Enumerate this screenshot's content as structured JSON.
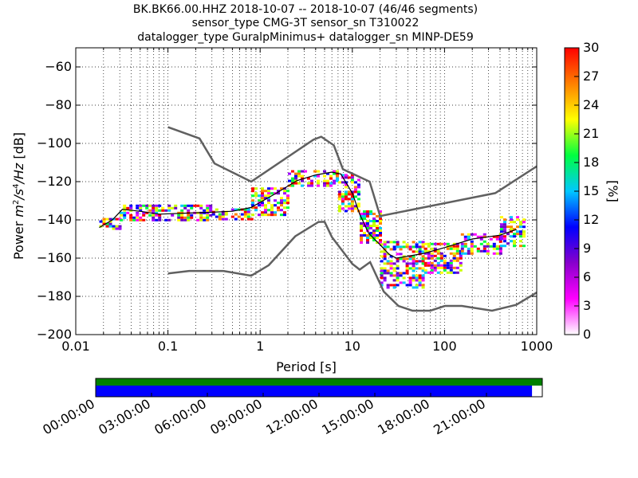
{
  "title_lines": [
    "BK.BK66.00.HHZ   2018-10-07 -- 2018-10-07  (46/46 segments)",
    "sensor_type CMG-3T sensor_sn T310022",
    "datalogger_type GuralpMinimus+ datalogger_sn MINP-DE59"
  ],
  "chart_data": [
    {
      "type": "heatmap",
      "title": "BK.BK66.00.HHZ   2018-10-07 -- 2018-10-07  (46/46 segments)",
      "xlabel": "Period [s]",
      "ylabel": "Power [m²/s⁴/Hz] [dB]",
      "ylabel_parts": [
        "Power ",
        "m",
        "2",
        "/s",
        "4",
        "/Hz",
        " [dB]"
      ],
      "xscale": "log",
      "xlim": [
        0.01,
        1000
      ],
      "ylim": [
        -200,
        -50
      ],
      "x_ticks": [
        0.01,
        0.1,
        1,
        10,
        100,
        1000
      ],
      "x_tick_labels": [
        "0.01",
        "0.1",
        "1",
        "10",
        "100",
        "1000"
      ],
      "y_ticks": [
        -200,
        -180,
        -160,
        -140,
        -120,
        -100,
        -80,
        -60
      ],
      "y_tick_labels": [
        "−200",
        "−180",
        "−160",
        "−140",
        "−120",
        "−100",
        "−80",
        "−60"
      ],
      "grid": true,
      "colorbar": {
        "label": "[%]",
        "range": [
          0,
          30
        ],
        "ticks": [
          0,
          3,
          6,
          9,
          12,
          15,
          18,
          21,
          24,
          27,
          30
        ],
        "tick_labels": [
          "0",
          "3",
          "6",
          "9",
          "12",
          "15",
          "18",
          "21",
          "24",
          "27",
          "30"
        ],
        "colormap": [
          "#ffffff",
          "#ff00ff",
          "#8800cc",
          "#0000ff",
          "#00c8ff",
          "#00ff40",
          "#ffff00",
          "#ff8000",
          "#ff0000"
        ]
      },
      "new_high_noise_model": [
        [
          0.1,
          -91.5
        ],
        [
          0.22,
          -97.4
        ],
        [
          0.32,
          -110.5
        ],
        [
          0.8,
          -120
        ],
        [
          3.8,
          -98
        ],
        [
          4.6,
          -96.5
        ],
        [
          6.3,
          -101
        ],
        [
          7.9,
          -113.5
        ],
        [
          15.4,
          -120
        ],
        [
          20,
          -138
        ],
        [
          354.8,
          -126
        ],
        [
          1000,
          -112
        ]
      ],
      "new_low_noise_model": [
        [
          0.1,
          -168
        ],
        [
          0.17,
          -166.7
        ],
        [
          0.4,
          -166.7
        ],
        [
          0.8,
          -169.2
        ],
        [
          1.24,
          -163.7
        ],
        [
          2.4,
          -148.6
        ],
        [
          4.3,
          -141.1
        ],
        [
          5,
          -141
        ],
        [
          6,
          -149
        ],
        [
          10,
          -163
        ],
        [
          12,
          -166
        ],
        [
          15.6,
          -162.1
        ],
        [
          21.9,
          -177.5
        ],
        [
          31.6,
          -185
        ],
        [
          45,
          -187.5
        ],
        [
          70,
          -187.5
        ],
        [
          101,
          -185
        ],
        [
          154,
          -185
        ],
        [
          328,
          -187.5
        ],
        [
          600,
          -184.4
        ],
        [
          1000,
          -178
        ]
      ],
      "median_curve": [
        [
          0.018,
          -144
        ],
        [
          0.025,
          -140
        ],
        [
          0.032,
          -134.5
        ],
        [
          0.05,
          -135.5
        ],
        [
          0.08,
          -137
        ],
        [
          0.15,
          -136.5
        ],
        [
          0.3,
          -136
        ],
        [
          0.5,
          -135.5
        ],
        [
          0.8,
          -133.5
        ],
        [
          1.5,
          -126
        ],
        [
          2.5,
          -119.5
        ],
        [
          4,
          -116.5
        ],
        [
          6,
          -115
        ],
        [
          7.5,
          -116
        ],
        [
          10,
          -126
        ],
        [
          12,
          -137
        ],
        [
          15,
          -147
        ],
        [
          20,
          -153
        ],
        [
          25,
          -158
        ],
        [
          30,
          -160
        ],
        [
          40,
          -159
        ],
        [
          60,
          -157.5
        ],
        [
          100,
          -154.5
        ],
        [
          200,
          -150
        ],
        [
          400,
          -148
        ],
        [
          600,
          -145
        ]
      ],
      "density_bands": [
        {
          "period_range": [
            0.018,
            0.03
          ],
          "power_range": [
            -145,
            -139
          ]
        },
        {
          "period_range": [
            0.03,
            0.3
          ],
          "power_range": [
            -140,
            -132
          ]
        },
        {
          "period_range": [
            0.3,
            0.8
          ],
          "power_range": [
            -140,
            -134
          ]
        },
        {
          "period_range": [
            0.8,
            2
          ],
          "power_range": [
            -137,
            -123
          ]
        },
        {
          "period_range": [
            2,
            7
          ],
          "power_range": [
            -122,
            -114
          ]
        },
        {
          "period_range": [
            7,
            12
          ],
          "power_range": [
            -135,
            -116
          ]
        },
        {
          "period_range": [
            12,
            20
          ],
          "power_range": [
            -152,
            -135
          ]
        },
        {
          "period_range": [
            20,
            60
          ],
          "power_range": [
            -176,
            -151
          ]
        },
        {
          "period_range": [
            60,
            150
          ],
          "power_range": [
            -168,
            -152
          ]
        },
        {
          "period_range": [
            150,
            400
          ],
          "power_range": [
            -158,
            -147
          ]
        },
        {
          "period_range": [
            400,
            700
          ],
          "power_range": [
            -154,
            -138
          ]
        }
      ]
    },
    {
      "type": "timeline",
      "time_labels": [
        "00:00:00",
        "03:00:00",
        "06:00:00",
        "09:00:00",
        "12:00:00",
        "15:00:00",
        "18:00:00",
        "21:00:00"
      ],
      "segments_total": 46,
      "segments_used": 46,
      "upper_bar_color": "#008000",
      "lower_bar_color": "#0000ff",
      "lower_bar_fraction": 0.977
    }
  ]
}
